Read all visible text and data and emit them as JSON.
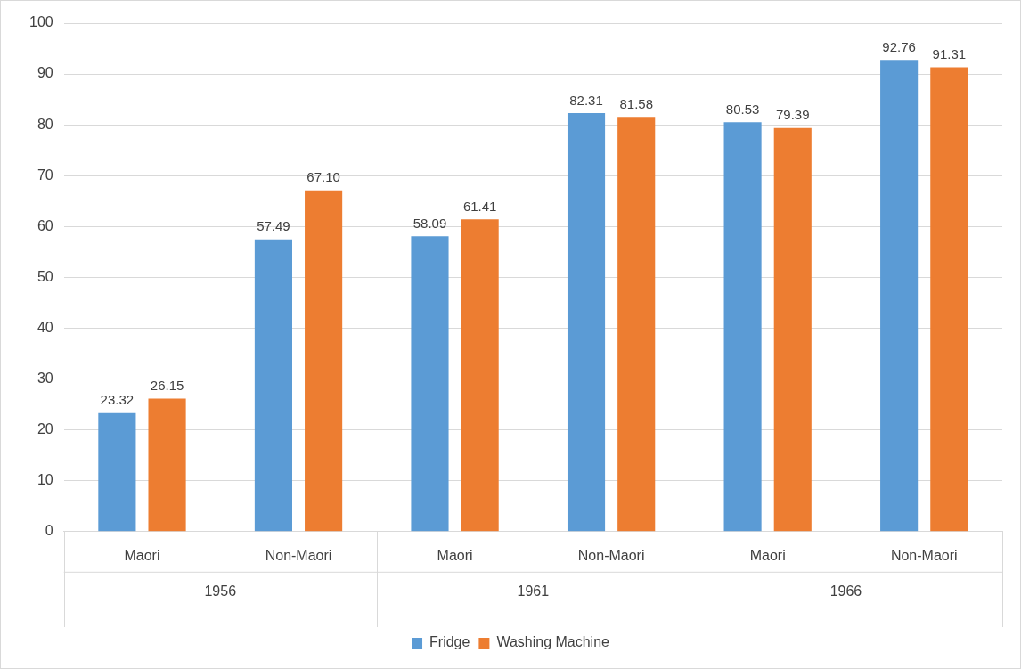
{
  "chart_data": {
    "type": "bar",
    "categories": [
      "Maori",
      "Non-Maori",
      "Maori",
      "Non-Maori",
      "Maori",
      "Non-Maori"
    ],
    "series": [
      {
        "name": "Fridge",
        "color": "#5b9bd5",
        "values": [
          23.32,
          57.49,
          58.09,
          82.31,
          80.53,
          92.76
        ],
        "value_labels": [
          "23.32",
          "57.49",
          "58.09",
          "82.31",
          "80.53",
          "92.76"
        ]
      },
      {
        "name": "Washing Machine",
        "color": "#ed7d31",
        "values": [
          26.15,
          67.1,
          61.41,
          81.58,
          79.39,
          91.31
        ],
        "value_labels": [
          "26.15",
          "67.10",
          "61.41",
          "81.58",
          "79.39",
          "91.31"
        ]
      }
    ],
    "annotations": [
      "1956",
      "1961",
      "1966"
    ],
    "ylim": [
      0,
      100
    ],
    "yticks": [
      0,
      10,
      20,
      30,
      40,
      50,
      60,
      70,
      80,
      90,
      100
    ],
    "grid": "y",
    "legend": "bottom"
  }
}
